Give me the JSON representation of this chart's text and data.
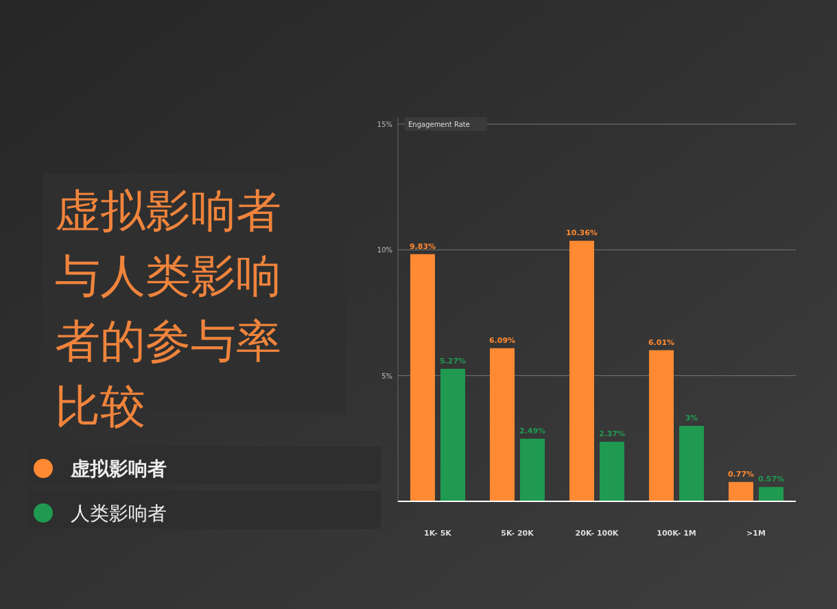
{
  "chart_data": {
    "type": "bar",
    "title": "虚拟影响者与人类影响者的参与率比较",
    "ylabel": "Engagement Rate",
    "categories": [
      "1K- 5K",
      "5K- 20K",
      "20K- 100K",
      "100K- 1M",
      ">1M"
    ],
    "series": [
      {
        "name": "虚拟影响者",
        "color": "#ff8a33",
        "values": [
          9.83,
          6.09,
          10.36,
          6.01,
          0.77
        ],
        "value_labels": [
          "9.83%",
          "6.09%",
          "10.36%",
          "6.01%",
          "0.77%"
        ]
      },
      {
        "name": "人类影响者",
        "color": "#1f9a50",
        "values": [
          5.27,
          2.49,
          2.37,
          3,
          0.57
        ],
        "value_labels": [
          "5.27%",
          "2.49%",
          "2.37%",
          "3%",
          "0.57%"
        ]
      }
    ],
    "ylim": [
      0,
      15
    ],
    "yticks": [
      {
        "value": 5,
        "label": "5%"
      },
      {
        "value": 10,
        "label": "10%"
      },
      {
        "value": 15,
        "label": "15%"
      }
    ],
    "grid": "y",
    "legend": "left"
  }
}
